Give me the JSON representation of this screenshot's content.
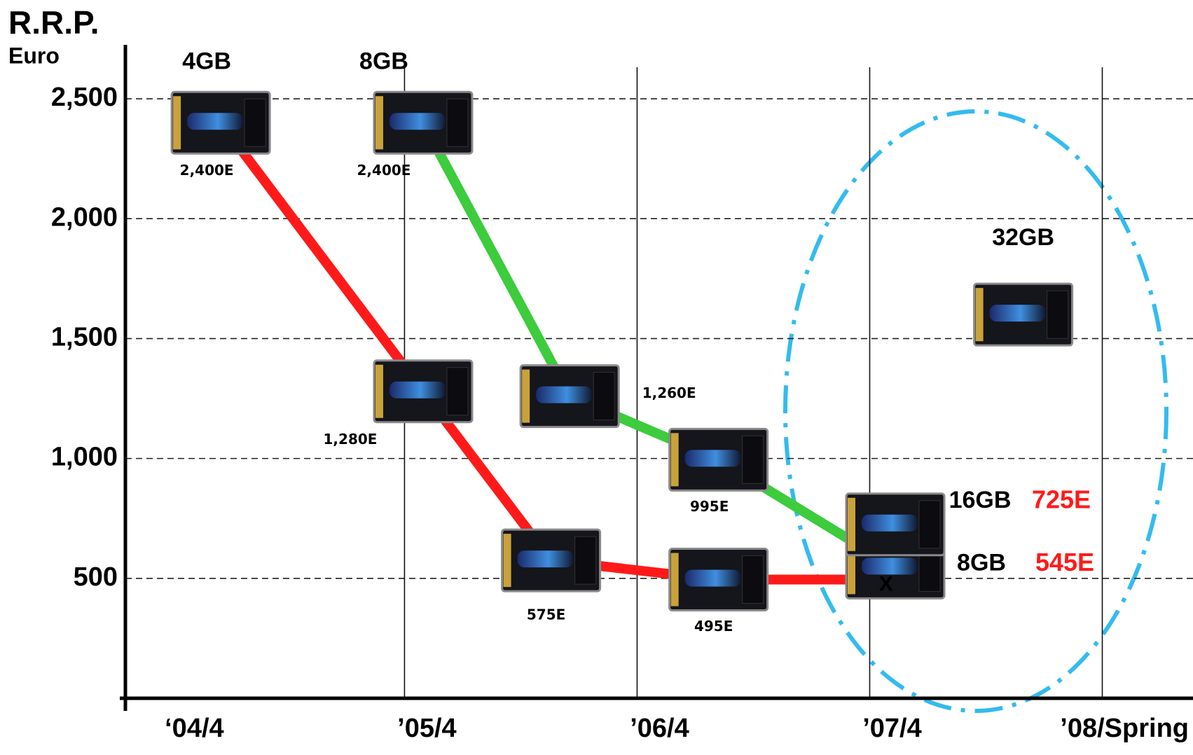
{
  "chart_data": {
    "type": "line",
    "title": "R.R.P.",
    "y_label": "Euro",
    "xlim": [
      2004.05,
      2008.64
    ],
    "xticks": [
      {
        "value": 2004.25,
        "label": "‘04/4"
      },
      {
        "value": 2005.25,
        "label": "’05/4"
      },
      {
        "value": 2006.25,
        "label": "’06/4"
      },
      {
        "value": 2007.25,
        "label": "’07/4"
      },
      {
        "value": 2008.25,
        "label": "’08/Spring"
      }
    ],
    "ylim": [
      0,
      2725
    ],
    "yticks": [
      500,
      {
        "value": 1000,
        "label": "1,000"
      },
      {
        "value": 1500,
        "label": "1,500"
      },
      {
        "value": 2000,
        "label": "2,000"
      },
      {
        "value": 2500,
        "label": "2,500"
      }
    ],
    "grid": true,
    "series": [
      {
        "name": "4GB",
        "color": "#ff1a1a",
        "x": [
          2004.46,
          2005.33,
          2005.88,
          2006.6,
          2007.32
        ],
        "values": [
          2400,
          1280,
          575,
          495,
          495
        ],
        "value_labels": [
          "2,400E",
          "1,280E",
          "575E",
          "495E",
          null
        ],
        "end_annotation": "X"
      },
      {
        "name": "8GB",
        "color": "#3ccc3c",
        "x": [
          2005.33,
          2005.96,
          2006.6,
          2007.36
        ],
        "values": [
          2400,
          1260,
          995,
          545
        ],
        "value_labels": [
          "2,400E",
          "1,260E",
          "995E",
          "545E"
        ]
      },
      {
        "name": "16GB",
        "x": [
          2007.36
        ],
        "values": [
          725
        ],
        "value_labels": [
          "725E"
        ]
      },
      {
        "name": "32GB",
        "x": [
          2007.91
        ],
        "values": [
          1600
        ]
      }
    ]
  }
}
